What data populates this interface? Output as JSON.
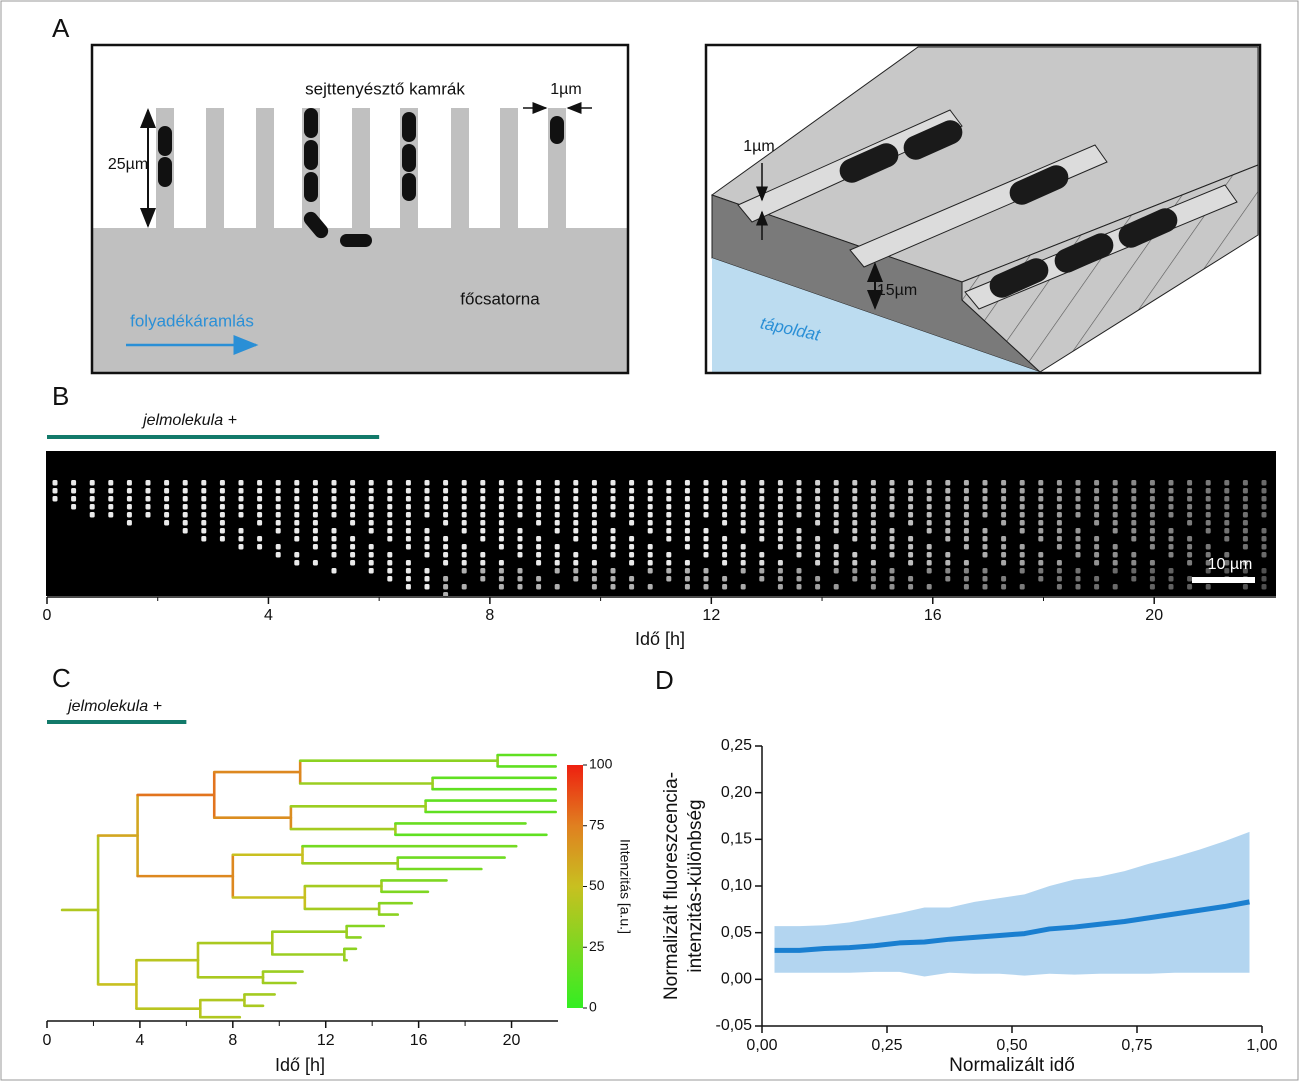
{
  "panel_labels": [
    "A",
    "B",
    "C",
    "D"
  ],
  "panel_a": {
    "left": {
      "title": "sejttenyésztő kamrák",
      "dim_height": "25µm",
      "dim_width": "1µm",
      "channel": "főcsatorna",
      "flow": "folyadékáramlás"
    },
    "right": {
      "dim_gap": "1µm",
      "dim_depth": "15µm",
      "medium": "tápoldat"
    }
  },
  "chart_data": [
    {
      "type": "kymograph",
      "signal_label": "jelmolekula +",
      "signal_interval": [
        0,
        6
      ],
      "scale_bar_label": "10 µm",
      "xlabel": "Idő [h]",
      "xlim": [
        0,
        22.2
      ],
      "xticks": [
        0,
        4,
        8,
        12,
        16,
        20
      ]
    },
    {
      "type": "tree",
      "signal_label": "jelmolekula +",
      "signal_interval": [
        0,
        6
      ],
      "xlabel": "Idő [h]",
      "xlim": [
        0,
        22
      ],
      "xticks": [
        0,
        4,
        8,
        12,
        16,
        20
      ],
      "colorbar": {
        "label": "Intenzitás [a.u.]",
        "lim": [
          0,
          100
        ],
        "ticks": [
          0,
          25,
          50,
          75,
          100
        ]
      },
      "tree": {
        "t0": 0.65,
        "t": 2.2,
        "v": 42,
        "children": [
          {
            "t": 3.9,
            "v": 60,
            "children": [
              {
                "t": 7.2,
                "v": 78,
                "children": [
                  {
                    "t": 10.9,
                    "v": 72,
                    "children": [
                      {
                        "t": 19.4,
                        "v": 30,
                        "children": [
                          {
                            "t": 21.9,
                            "v": 15
                          },
                          {
                            "t": 21.9,
                            "v": 15
                          }
                        ]
                      },
                      {
                        "t": 16.6,
                        "v": 35,
                        "children": [
                          {
                            "t": 21.9,
                            "v": 15
                          },
                          {
                            "t": 21.9,
                            "v": 15
                          }
                        ]
                      }
                    ]
                  },
                  {
                    "t": 10.5,
                    "v": 70,
                    "children": [
                      {
                        "t": 16.3,
                        "v": 35,
                        "children": [
                          {
                            "t": 21.9,
                            "v": 15
                          },
                          {
                            "t": 21.9,
                            "v": 15
                          }
                        ]
                      },
                      {
                        "t": 15.0,
                        "v": 38,
                        "children": [
                          {
                            "t": 20.6,
                            "v": 18
                          },
                          {
                            "t": 21.5,
                            "v": 15
                          }
                        ]
                      }
                    ]
                  }
                ]
              },
              {
                "t": 8.0,
                "v": 72,
                "children": [
                  {
                    "t": 11.0,
                    "v": 50,
                    "children": [
                      {
                        "t": 20.2,
                        "v": 22
                      },
                      {
                        "t": 15.1,
                        "v": 35,
                        "children": [
                          {
                            "t": 19.7,
                            "v": 20
                          },
                          {
                            "t": 18.7,
                            "v": 22
                          }
                        ]
                      }
                    ]
                  },
                  {
                    "t": 11.1,
                    "v": 50,
                    "children": [
                      {
                        "t": 14.4,
                        "v": 38,
                        "children": [
                          {
                            "t": 17.2,
                            "v": 25
                          },
                          {
                            "t": 16.4,
                            "v": 25
                          }
                        ]
                      },
                      {
                        "t": 14.3,
                        "v": 38,
                        "children": [
                          {
                            "t": 15.7,
                            "v": 28
                          },
                          {
                            "t": 15.1,
                            "v": 30
                          }
                        ]
                      }
                    ]
                  }
                ]
              }
            ]
          },
          {
            "t": 3.85,
            "v": 50,
            "children": [
              {
                "t": 6.5,
                "v": 45,
                "children": [
                  {
                    "t": 9.7,
                    "v": 40,
                    "children": [
                      {
                        "t": 12.9,
                        "v": 35,
                        "children": [
                          {
                            "t": 14.5,
                            "v": 28
                          },
                          {
                            "t": 13.5,
                            "v": 30
                          }
                        ]
                      },
                      {
                        "t": 12.8,
                        "v": 35,
                        "children": [
                          {
                            "t": 13.3,
                            "v": 30
                          },
                          {
                            "t": 12.9,
                            "v": 32
                          }
                        ]
                      }
                    ]
                  },
                  {
                    "t": 9.3,
                    "v": 40,
                    "children": [
                      {
                        "t": 11.0,
                        "v": 35
                      },
                      {
                        "t": 10.7,
                        "v": 36
                      }
                    ]
                  }
                ]
              },
              {
                "t": 6.6,
                "v": 45,
                "children": [
                  {
                    "t": 8.5,
                    "v": 42,
                    "children": [
                      {
                        "t": 9.8,
                        "v": 38
                      },
                      {
                        "t": 9.3,
                        "v": 40
                      }
                    ]
                  },
                  {
                    "t": 8.3,
                    "v": 42
                  }
                ]
              }
            ]
          }
        ]
      }
    },
    {
      "type": "line",
      "xlabel": "Normalizált idő",
      "ylabel": [
        "Normalizált fluoreszcencia-",
        "intenzitás-különbség"
      ],
      "xlim": [
        0,
        1
      ],
      "xticks": [
        {
          "value": 0,
          "label": "0,00"
        },
        {
          "value": 0.25,
          "label": "0,25"
        },
        {
          "value": 0.5,
          "label": "0,50"
        },
        {
          "value": 0.75,
          "label": "0,75"
        },
        {
          "value": 1,
          "label": "1,00"
        }
      ],
      "ylim": [
        -0.05,
        0.25
      ],
      "yticks": [
        {
          "value": -0.05,
          "label": "-0,05"
        },
        {
          "value": 0,
          "label": "0,00"
        },
        {
          "value": 0.05,
          "label": "0,05"
        },
        {
          "value": 0.1,
          "label": "0,10"
        },
        {
          "value": 0.15,
          "label": "0,15"
        },
        {
          "value": 0.2,
          "label": "0,20"
        },
        {
          "value": 0.25,
          "label": "0,25"
        }
      ],
      "x": [
        0.025,
        0.075,
        0.125,
        0.175,
        0.225,
        0.275,
        0.325,
        0.375,
        0.425,
        0.475,
        0.525,
        0.575,
        0.625,
        0.675,
        0.725,
        0.775,
        0.825,
        0.875,
        0.925,
        0.975
      ],
      "series": [
        {
          "color": "#1a7fd0",
          "band_color": "#b3d5f0",
          "values": [
            0.031,
            0.031,
            0.033,
            0.034,
            0.036,
            0.039,
            0.04,
            0.043,
            0.045,
            0.047,
            0.049,
            0.054,
            0.056,
            0.059,
            0.062,
            0.066,
            0.07,
            0.074,
            0.078,
            0.083
          ],
          "lower": [
            0.007,
            0.007,
            0.007,
            0.007,
            0.008,
            0.008,
            0.003,
            0.007,
            0.006,
            0.006,
            0.004,
            0.006,
            0.005,
            0.006,
            0.006,
            0.006,
            0.007,
            0.007,
            0.007,
            0.007
          ],
          "upper": [
            0.057,
            0.057,
            0.058,
            0.061,
            0.066,
            0.071,
            0.077,
            0.077,
            0.083,
            0.087,
            0.091,
            0.1,
            0.107,
            0.11,
            0.116,
            0.124,
            0.131,
            0.139,
            0.148,
            0.158
          ]
        }
      ]
    }
  ]
}
